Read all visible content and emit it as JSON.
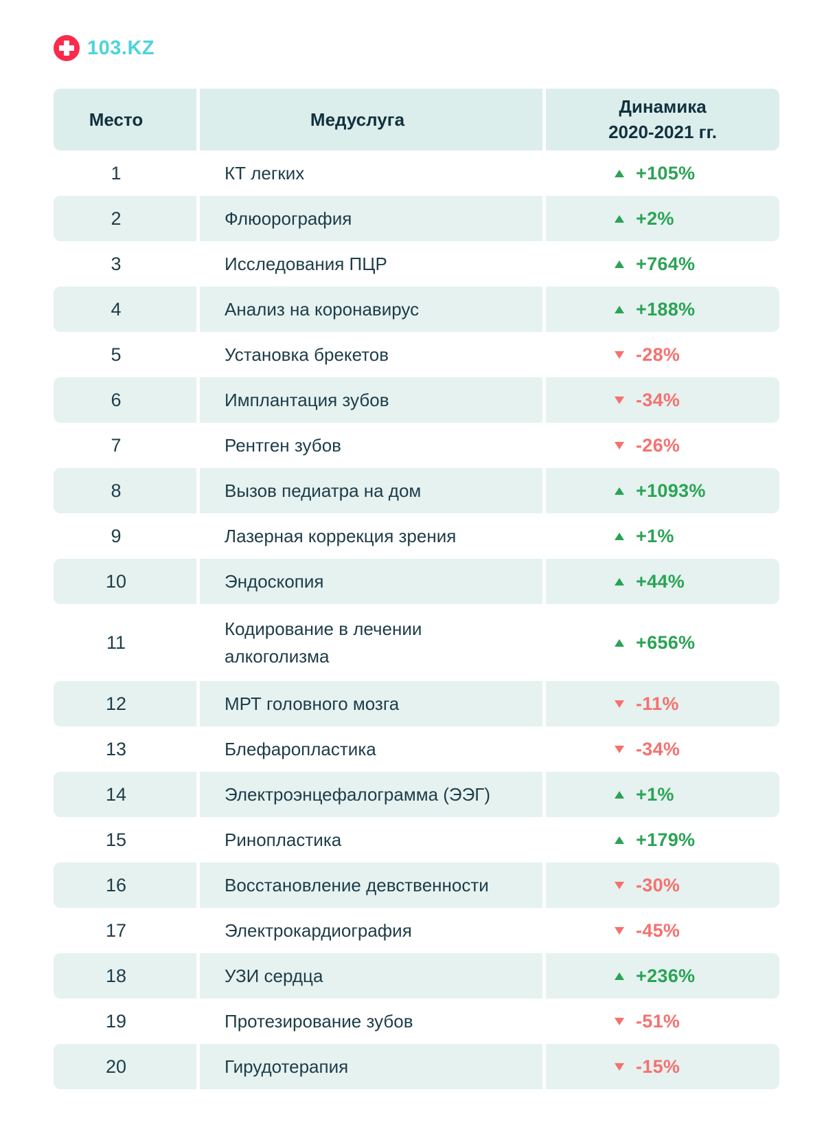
{
  "logo": {
    "text": "103.KZ"
  },
  "colors": {
    "navy": "#1E3C48",
    "navy_dark": "#12313F",
    "row_teal": "#E5F2F0",
    "header_teal": "#DCEEEB",
    "green_up": "#2BA355",
    "red_down": "#F5716F",
    "brand_red": "#FB2B4D",
    "brand_teal": "#4CD3DC"
  },
  "chart_data": {
    "type": "table",
    "columns": {
      "place_label": "Место",
      "service_label": "Медуслуга",
      "dynamics_label_line1": "Динамика",
      "dynamics_label_line2": "2020-2021 гг."
    },
    "rows": [
      {
        "place": "1",
        "service": "КТ легких",
        "value": "+105%",
        "percent": 105,
        "direction": "up"
      },
      {
        "place": "2",
        "service": "Флюорография",
        "value": "+2%",
        "percent": 2,
        "direction": "up"
      },
      {
        "place": "3",
        "service": "Исследования ПЦР",
        "value": "+764%",
        "percent": 764,
        "direction": "up"
      },
      {
        "place": "4",
        "service": "Анализ на коронавирус",
        "value": "+188%",
        "percent": 188,
        "direction": "up"
      },
      {
        "place": "5",
        "service": "Установка брекетов",
        "value": "-28%",
        "percent": -28,
        "direction": "down"
      },
      {
        "place": "6",
        "service": "Имплантация зубов",
        "value": "-34%",
        "percent": -34,
        "direction": "down"
      },
      {
        "place": "7",
        "service": "Рентген зубов",
        "value": "-26%",
        "percent": -26,
        "direction": "down"
      },
      {
        "place": "8",
        "service": "Вызов педиатра на дом",
        "value": "+1093%",
        "percent": 1093,
        "direction": "up"
      },
      {
        "place": "9",
        "service": "Лазерная коррекция зрения",
        "value": "+1%",
        "percent": 1,
        "direction": "up"
      },
      {
        "place": "10",
        "service": "Эндоскопия",
        "value": "+44%",
        "percent": 44,
        "direction": "up"
      },
      {
        "place": "11",
        "service": "Кодирование в лечении алкоголизма",
        "value": "+656%",
        "percent": 656,
        "direction": "up"
      },
      {
        "place": "12",
        "service": "МРТ головного мозга",
        "value": "-11%",
        "percent": -11,
        "direction": "down"
      },
      {
        "place": "13",
        "service": "Блефаропластика",
        "value": "-34%",
        "percent": -34,
        "direction": "down"
      },
      {
        "place": "14",
        "service": "Электроэнцефалограмма (ЭЭГ)",
        "value": "+1%",
        "percent": 1,
        "direction": "up"
      },
      {
        "place": "15",
        "service": "Ринопластика",
        "value": "+179%",
        "percent": 179,
        "direction": "up"
      },
      {
        "place": "16",
        "service": "Восстановление девственности",
        "value": "-30%",
        "percent": -30,
        "direction": "down"
      },
      {
        "place": "17",
        "service": "Электрокардиография",
        "value": "-45%",
        "percent": -45,
        "direction": "down"
      },
      {
        "place": "18",
        "service": "УЗИ сердца",
        "value": "+236%",
        "percent": 236,
        "direction": "up"
      },
      {
        "place": "19",
        "service": "Протезирование зубов",
        "value": "-51%",
        "percent": -51,
        "direction": "down"
      },
      {
        "place": "20",
        "service": "Гирудотерапия",
        "value": "-15%",
        "percent": -15,
        "direction": "down"
      }
    ]
  }
}
